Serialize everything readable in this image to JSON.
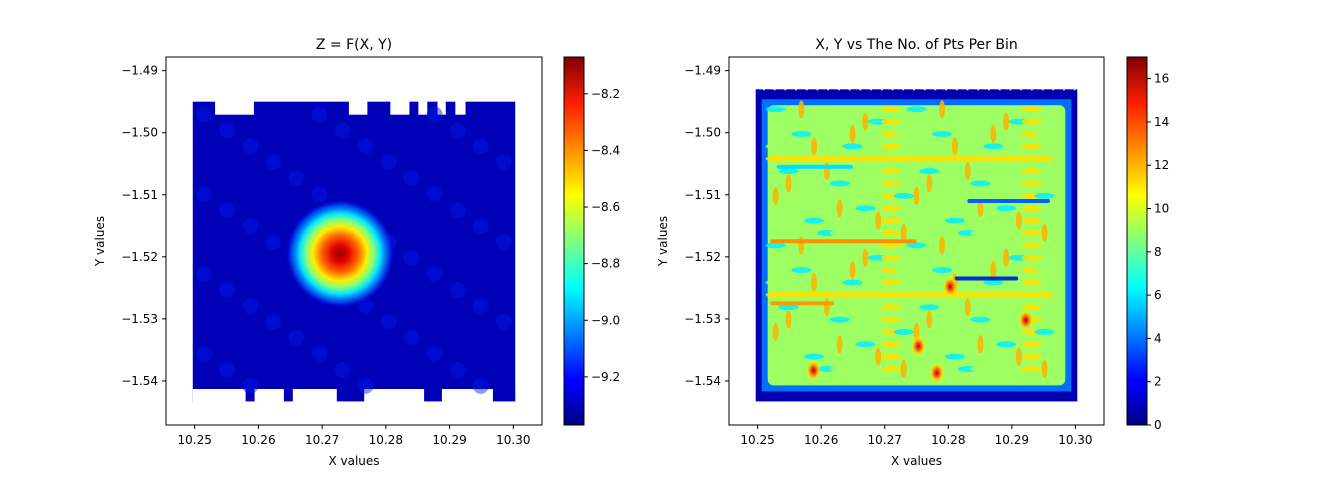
{
  "chart_data": [
    {
      "type": "heatmap",
      "title": "Z = F(X, Y)",
      "xlabel": "X values",
      "ylabel": "Y values",
      "xlim": [
        10.2455,
        10.3045
      ],
      "ylim": [
        -1.5471,
        -1.4878
      ],
      "xticks": [
        "10.25",
        "10.26",
        "10.27",
        "10.28",
        "10.29",
        "10.30"
      ],
      "yticks": [
        "−1.49",
        "−1.50",
        "−1.51",
        "−1.52",
        "−1.53",
        "−1.54"
      ],
      "colorbar": {
        "min": -9.37,
        "max": -8.07,
        "ticks": [
          "−8.2",
          "−8.4",
          "−8.6",
          "−8.8",
          "−9.0",
          "−9.2"
        ],
        "colormap": "jet"
      },
      "data_extent": {
        "x": [
          10.2497,
          10.3003
        ],
        "y": [
          -1.5433,
          -1.495
        ]
      },
      "peak": {
        "x": 10.2728,
        "y": -1.5195,
        "value": -8.07
      },
      "background_value": -9.3
    },
    {
      "type": "heatmap",
      "title": "X, Y vs The No. of Pts Per Bin",
      "xlabel": "X values",
      "ylabel": "Y values",
      "xlim": [
        10.2455,
        10.3045
      ],
      "ylim": [
        -1.5471,
        -1.4878
      ],
      "xticks": [
        "10.25",
        "10.26",
        "10.27",
        "10.28",
        "10.29",
        "10.30"
      ],
      "yticks": [
        "−1.49",
        "−1.50",
        "−1.51",
        "−1.52",
        "−1.53",
        "−1.54"
      ],
      "colorbar": {
        "min": 0,
        "max": 17,
        "ticks": [
          "0",
          "2",
          "4",
          "6",
          "8",
          "10",
          "12",
          "14",
          "16"
        ],
        "colormap": "jet"
      },
      "data_extent": {
        "x": [
          10.2497,
          10.3003
        ],
        "y": [
          -1.5433,
          -1.493
        ]
      },
      "typical_value": 9,
      "hotspots": [
        {
          "x": 10.2803,
          "y": -1.5248,
          "value": 17
        },
        {
          "x": 10.2922,
          "y": -1.5302,
          "value": 16
        },
        {
          "x": 10.2753,
          "y": -1.5344,
          "value": 15
        },
        {
          "x": 10.2782,
          "y": -1.5387,
          "value": 14
        },
        {
          "x": 10.2588,
          "y": -1.5383,
          "value": 14
        }
      ]
    }
  ]
}
